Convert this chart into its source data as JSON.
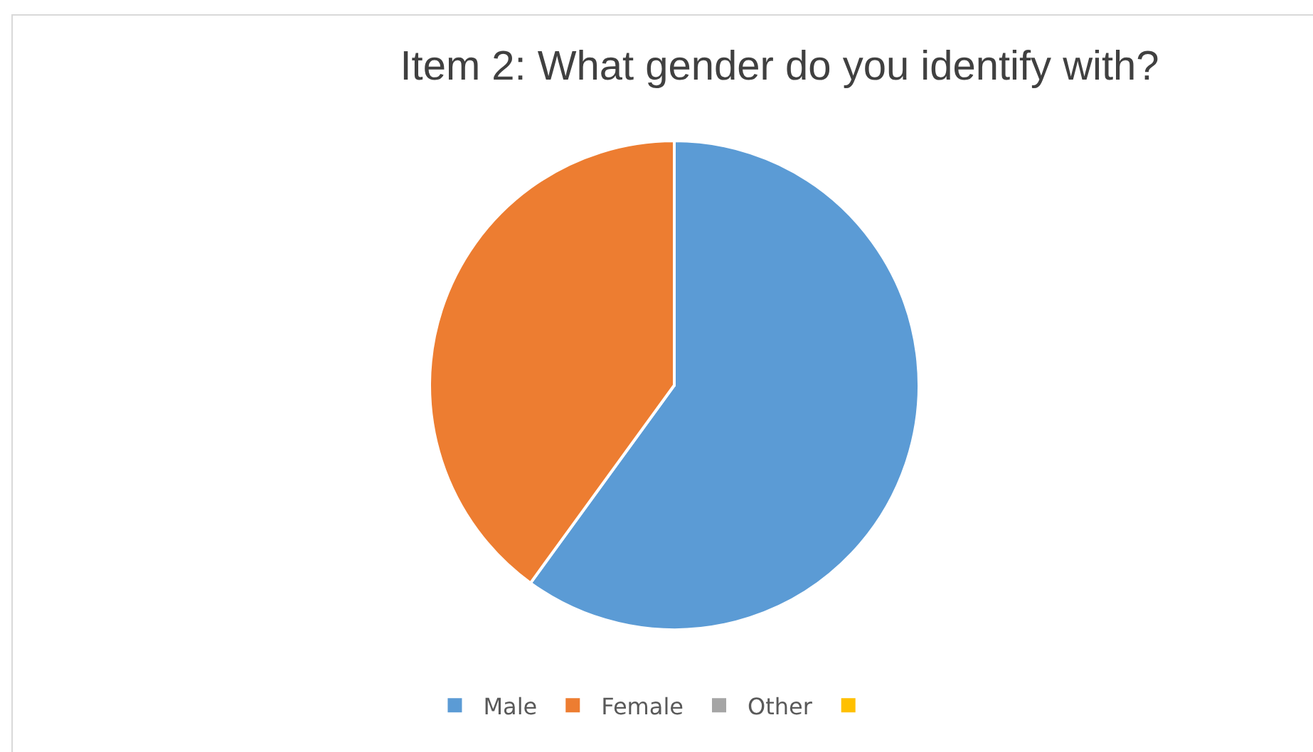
{
  "chart_data": {
    "type": "pie",
    "title": "Item 2: What gender do you identify with?",
    "categories": [
      "Male",
      "Female",
      "Other",
      null
    ],
    "values": [
      60,
      40,
      0,
      0
    ],
    "colors": [
      "#5b9bd5",
      "#ed7d31",
      "#a5a5a5",
      "#ffc000"
    ],
    "legend": "bottom"
  }
}
